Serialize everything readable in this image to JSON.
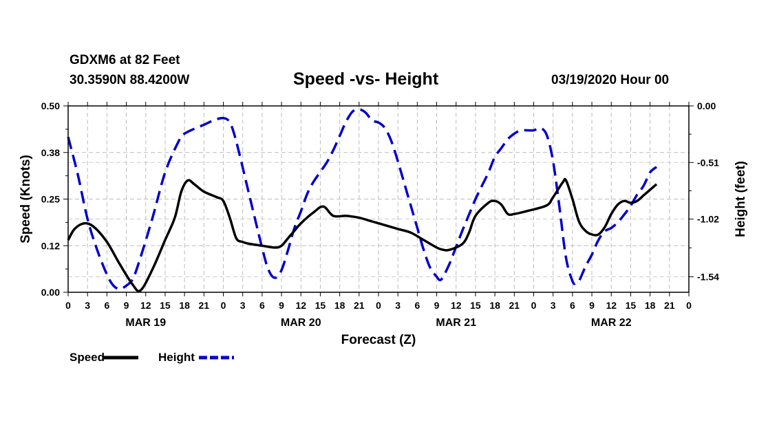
{
  "header": {
    "station_line": "GDXM6 at 82 Feet",
    "coords_line": "30.3590N 88.4200W",
    "date_line": "03/19/2020 Hour 00"
  },
  "chart_data": {
    "type": "line",
    "title": "Speed -vs- Height",
    "xlabel": "Forecast (Z)",
    "ylabel": "Speed (Knots)",
    "ylabel_right": "Height (feet)",
    "x_range_hours": [
      0,
      96
    ],
    "ylim": [
      0,
      0.5
    ],
    "ylim_right": [
      -1.68,
      0.0
    ],
    "y_ticks": [
      "0.50",
      "0.38",
      "0.25",
      "0.12",
      "0.00"
    ],
    "y_tick_values": [
      0.5,
      0.375,
      0.25,
      0.125,
      0.0
    ],
    "y_right_ticks": [
      "0.00",
      "-0.51",
      "-1.02",
      "-1.54"
    ],
    "y_right_tick_values": [
      0.0,
      -0.51,
      -1.02,
      -1.54
    ],
    "x_tick_labels": [
      "0",
      "3",
      "6",
      "9",
      "12",
      "15",
      "18",
      "21",
      "0",
      "3",
      "6",
      "9",
      "12",
      "15",
      "18",
      "21",
      "0",
      "3",
      "6",
      "9",
      "12",
      "15",
      "18",
      "21",
      "0",
      "3",
      "6",
      "9",
      "12",
      "15",
      "18",
      "21",
      "0"
    ],
    "date_labels": [
      {
        "label": "MAR 19",
        "hour": 12
      },
      {
        "label": "MAR 20",
        "hour": 36
      },
      {
        "label": "MAR 21",
        "hour": 60
      },
      {
        "label": "MAR 22",
        "hour": 84
      }
    ],
    "grid": true,
    "series": [
      {
        "name": "Speed",
        "axis": "left",
        "color": "#000000",
        "style": "solid",
        "points": [
          [
            0,
            0.14
          ],
          [
            1,
            0.17
          ],
          [
            2.5,
            0.185
          ],
          [
            4,
            0.175
          ],
          [
            6,
            0.135
          ],
          [
            8,
            0.075
          ],
          [
            10,
            0.02
          ],
          [
            11.2,
            0.005
          ],
          [
            13,
            0.06
          ],
          [
            15,
            0.14
          ],
          [
            16.5,
            0.2
          ],
          [
            17.5,
            0.27
          ],
          [
            18.5,
            0.3
          ],
          [
            19.5,
            0.29
          ],
          [
            21,
            0.27
          ],
          [
            23,
            0.255
          ],
          [
            24,
            0.245
          ],
          [
            25,
            0.2
          ],
          [
            26,
            0.145
          ],
          [
            27,
            0.135
          ],
          [
            28,
            0.13
          ],
          [
            30,
            0.125
          ],
          [
            32,
            0.12
          ],
          [
            33,
            0.125
          ],
          [
            34,
            0.145
          ],
          [
            35,
            0.165
          ],
          [
            36,
            0.185
          ],
          [
            38,
            0.215
          ],
          [
            39.5,
            0.23
          ],
          [
            41,
            0.205
          ],
          [
            43,
            0.205
          ],
          [
            45,
            0.2
          ],
          [
            47,
            0.19
          ],
          [
            49,
            0.18
          ],
          [
            51,
            0.17
          ],
          [
            53,
            0.16
          ],
          [
            55,
            0.14
          ],
          [
            57,
            0.12
          ],
          [
            58,
            0.114
          ],
          [
            59,
            0.114
          ],
          [
            61,
            0.13
          ],
          [
            62,
            0.16
          ],
          [
            63,
            0.205
          ],
          [
            65,
            0.24
          ],
          [
            66,
            0.245
          ],
          [
            67,
            0.235
          ],
          [
            68,
            0.21
          ],
          [
            69,
            0.21
          ],
          [
            71,
            0.218
          ],
          [
            74,
            0.233
          ],
          [
            75,
            0.255
          ],
          [
            76.5,
            0.295
          ],
          [
            77,
            0.3
          ],
          [
            78,
            0.25
          ],
          [
            79,
            0.19
          ],
          [
            80,
            0.165
          ],
          [
            81,
            0.155
          ],
          [
            82,
            0.155
          ],
          [
            83,
            0.175
          ],
          [
            84,
            0.21
          ],
          [
            85,
            0.235
          ],
          [
            86,
            0.245
          ],
          [
            87,
            0.24
          ],
          [
            88,
            0.245
          ],
          [
            89,
            0.26
          ],
          [
            90,
            0.275
          ],
          [
            91,
            0.29
          ]
        ]
      },
      {
        "name": "Height",
        "axis": "right",
        "color": "#0000cc",
        "style": "dashed",
        "points": [
          [
            0,
            -0.28
          ],
          [
            1.5,
            -0.62
          ],
          [
            3,
            -1.02
          ],
          [
            4.5,
            -1.3
          ],
          [
            6,
            -1.52
          ],
          [
            7,
            -1.62
          ],
          [
            8,
            -1.65
          ],
          [
            9,
            -1.62
          ],
          [
            10,
            -1.56
          ],
          [
            11,
            -1.4
          ],
          [
            13,
            -1.02
          ],
          [
            15,
            -0.6
          ],
          [
            17,
            -0.33
          ],
          [
            18,
            -0.25
          ],
          [
            21,
            -0.17
          ],
          [
            22.5,
            -0.13
          ],
          [
            24,
            -0.11
          ],
          [
            25,
            -0.15
          ],
          [
            26,
            -0.32
          ],
          [
            28,
            -0.8
          ],
          [
            30,
            -1.28
          ],
          [
            31,
            -1.48
          ],
          [
            32,
            -1.55
          ],
          [
            33,
            -1.48
          ],
          [
            34,
            -1.3
          ],
          [
            35,
            -1.1
          ],
          [
            36,
            -0.95
          ],
          [
            37,
            -0.79
          ],
          [
            38,
            -0.68
          ],
          [
            40,
            -0.51
          ],
          [
            41,
            -0.4
          ],
          [
            42,
            -0.27
          ],
          [
            43,
            -0.14
          ],
          [
            44,
            -0.05
          ],
          [
            45,
            -0.03
          ],
          [
            46,
            -0.06
          ],
          [
            47,
            -0.13
          ],
          [
            48,
            -0.15
          ],
          [
            49,
            -0.2
          ],
          [
            50,
            -0.32
          ],
          [
            51,
            -0.5
          ],
          [
            52,
            -0.7
          ],
          [
            53,
            -0.9
          ],
          [
            54,
            -1.1
          ],
          [
            55,
            -1.3
          ],
          [
            56,
            -1.46
          ],
          [
            57,
            -1.54
          ],
          [
            57.5,
            -1.57
          ],
          [
            58,
            -1.54
          ],
          [
            59,
            -1.42
          ],
          [
            60,
            -1.27
          ],
          [
            61,
            -1.12
          ],
          [
            62,
            -0.98
          ],
          [
            63,
            -0.84
          ],
          [
            64,
            -0.72
          ],
          [
            65,
            -0.6
          ],
          [
            66,
            -0.46
          ],
          [
            67,
            -0.38
          ],
          [
            68,
            -0.3
          ],
          [
            69,
            -0.25
          ],
          [
            70,
            -0.22
          ],
          [
            71,
            -0.22
          ],
          [
            72,
            -0.22
          ],
          [
            73,
            -0.2
          ],
          [
            74,
            -0.26
          ],
          [
            75,
            -0.5
          ],
          [
            76,
            -0.92
          ],
          [
            77,
            -1.37
          ],
          [
            78,
            -1.58
          ],
          [
            78.5,
            -1.6
          ],
          [
            79,
            -1.58
          ],
          [
            80,
            -1.45
          ],
          [
            81,
            -1.34
          ],
          [
            82,
            -1.21
          ],
          [
            83,
            -1.13
          ],
          [
            84,
            -1.1
          ],
          [
            85,
            -1.05
          ],
          [
            86,
            -0.98
          ],
          [
            87,
            -0.9
          ],
          [
            88,
            -0.8
          ],
          [
            89,
            -0.72
          ],
          [
            90,
            -0.6
          ],
          [
            91,
            -0.55
          ]
        ]
      }
    ],
    "legend": [
      {
        "label": "Speed",
        "color": "#000000",
        "style": "solid"
      },
      {
        "label": "Height",
        "color": "#0000cc",
        "style": "dashed"
      }
    ],
    "legend_position": "bottom-left"
  }
}
